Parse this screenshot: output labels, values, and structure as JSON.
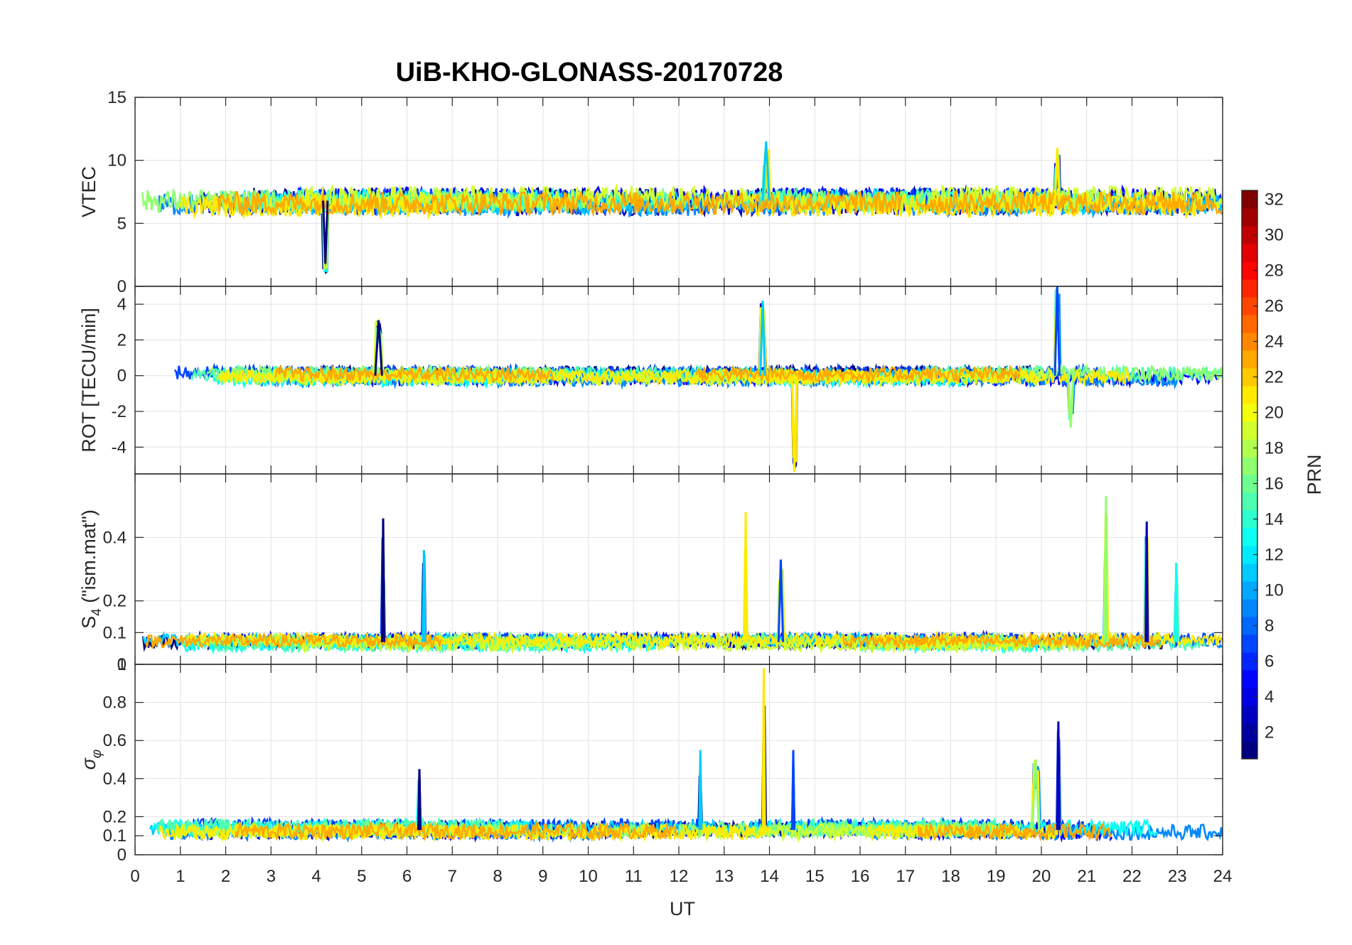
{
  "chart_data": {
    "type": "line",
    "title": "UiB-KHO-GLONASS-20170728",
    "xlabel": "UT",
    "xlim": [
      0,
      24
    ],
    "xticks": [
      0,
      1,
      2,
      3,
      4,
      5,
      6,
      7,
      8,
      9,
      10,
      11,
      12,
      13,
      14,
      15,
      16,
      17,
      18,
      19,
      20,
      21,
      22,
      23,
      24
    ],
    "grid": true,
    "colorbar": {
      "label": "PRN",
      "colormap": "jet",
      "range": [
        1,
        32
      ],
      "ticks": [
        2,
        4,
        6,
        8,
        10,
        12,
        14,
        16,
        18,
        20,
        22,
        24,
        26,
        28,
        30,
        32
      ]
    },
    "panels": [
      {
        "id": "vtec",
        "ylabel": "VTEC",
        "ylim": [
          0,
          15
        ],
        "yticks": [
          0,
          5,
          10,
          15
        ],
        "baseline": 6.8,
        "noise": 0.9,
        "events": [
          {
            "x": [
              4.15,
              4.25
            ],
            "value": 1.8
          },
          {
            "x": [
              13.85,
              14.0
            ],
            "value": 11.5
          },
          {
            "x": [
              20.3,
              20.4
            ],
            "value": 11.0
          }
        ]
      },
      {
        "id": "rot",
        "ylabel": "ROT [TECU/min]",
        "ylim": [
          -5.5,
          5
        ],
        "yticks": [
          -4,
          -2,
          0,
          2,
          4
        ],
        "baseline": 0,
        "noise": 0.4,
        "events": [
          {
            "x": [
              5.3,
              5.45
            ],
            "value": 3.1
          },
          {
            "x": [
              13.8,
              13.9
            ],
            "value": 4.2
          },
          {
            "x": [
              14.5,
              14.6
            ],
            "value": -5.4
          },
          {
            "x": [
              20.3,
              20.4
            ],
            "value": 5.0
          },
          {
            "x": [
              20.6,
              20.7
            ],
            "value": -2.9
          }
        ]
      },
      {
        "id": "s4",
        "ylabel": "S4 (\"ism.mat\")",
        "ylabel_main": "S",
        "ylabel_sub": "4",
        "ylabel_rest": " (\"ism.mat\")",
        "ylim": [
          0,
          0.6
        ],
        "yticks": [
          0,
          0.1,
          0.2,
          0.4
        ],
        "baseline": 0.07,
        "noise": 0.02,
        "events": [
          {
            "x": [
              5.45,
              5.5
            ],
            "value": 0.46
          },
          {
            "x": [
              6.35,
              6.4
            ],
            "value": 0.36
          },
          {
            "x": [
              13.45,
              13.5
            ],
            "value": 0.48
          },
          {
            "x": [
              14.2,
              14.3
            ],
            "value": 0.33
          },
          {
            "x": [
              21.4,
              21.45
            ],
            "value": 0.53
          },
          {
            "x": [
              22.3,
              22.35
            ],
            "value": 0.45
          },
          {
            "x": [
              22.95,
              23.0
            ],
            "value": 0.32
          }
        ]
      },
      {
        "id": "sigma",
        "ylabel": "σφ",
        "ylabel_main": "σ",
        "ylabel_sub": "φ",
        "ylim": [
          0,
          1
        ],
        "yticks": [
          0,
          0.1,
          0.2,
          0.4,
          0.6,
          0.8,
          1
        ],
        "baseline": 0.13,
        "noise": 0.04,
        "events": [
          {
            "x": [
              6.25,
              6.3
            ],
            "value": 0.45
          },
          {
            "x": [
              12.45,
              12.5
            ],
            "value": 0.55
          },
          {
            "x": [
              13.85,
              13.9
            ],
            "value": 0.98
          },
          {
            "x": [
              14.5,
              14.55
            ],
            "value": 0.55
          },
          {
            "x": [
              19.8,
              19.95
            ],
            "value": 0.5
          },
          {
            "x": [
              20.35,
              20.4
            ],
            "value": 0.7
          }
        ]
      }
    ],
    "series": [
      {
        "prn": 1
      },
      {
        "prn": 3
      },
      {
        "prn": 5
      },
      {
        "prn": 7
      },
      {
        "prn": 9
      },
      {
        "prn": 11
      },
      {
        "prn": 13
      },
      {
        "prn": 15
      },
      {
        "prn": 17
      },
      {
        "prn": 19
      },
      {
        "prn": 21
      },
      {
        "prn": 23
      }
    ]
  }
}
